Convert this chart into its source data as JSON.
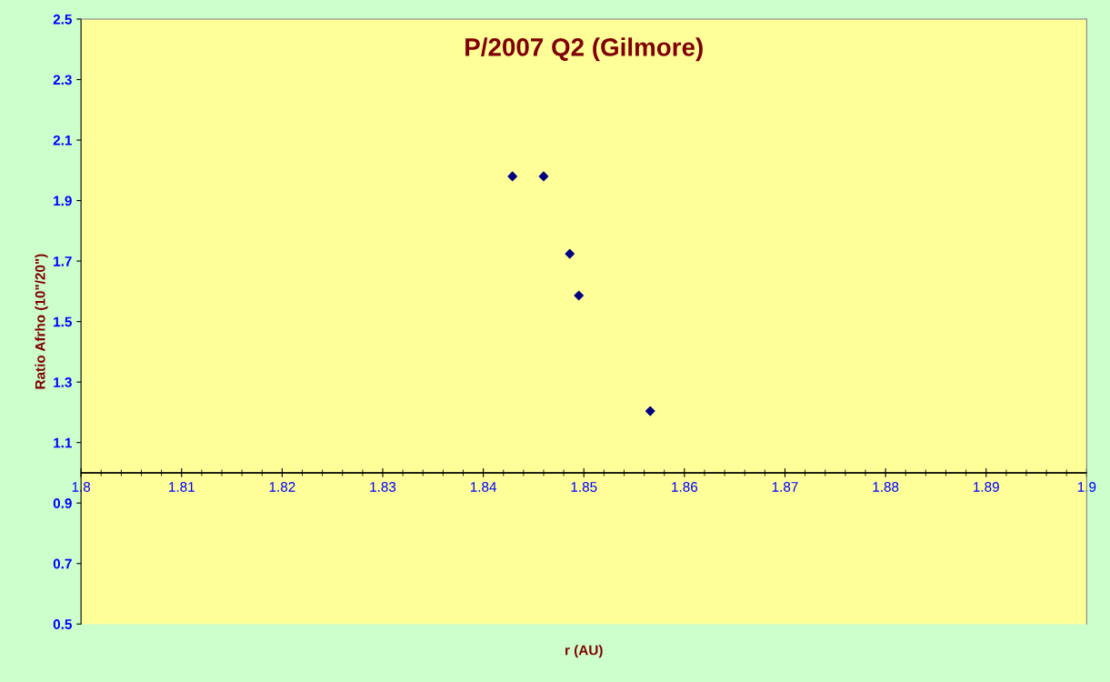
{
  "chart_data": {
    "type": "scatter",
    "title": "P/2007 Q2 (Gilmore)",
    "xlabel": "r (AU)",
    "ylabel": "Ratio Afrho (10\"/20\")",
    "series": [
      {
        "color": "#000080",
        "x": [
          1.8429,
          1.846,
          1.8486,
          1.8495,
          1.8566
        ],
        "values": [
          1.98,
          1.98,
          1.724,
          1.586,
          1.204
        ]
      }
    ],
    "marker": "diamond",
    "grid": false,
    "legend": false,
    "xlim": [
      1.8,
      1.9
    ],
    "xticks": [
      {
        "value": 1.8,
        "label": "1.8"
      },
      1.81,
      1.82,
      1.83,
      1.84,
      1.85,
      1.86,
      1.87,
      1.88,
      1.89,
      {
        "value": 1.9,
        "label": "1.9"
      }
    ],
    "ylim": [
      0.5,
      2.5
    ],
    "yticks": [
      0.5,
      0.7,
      0.9,
      1.1,
      1.3,
      1.5,
      1.7,
      1.9,
      2.1,
      2.3,
      2.5
    ],
    "ref_lines": [
      {
        "axis": "y",
        "value": 1.0,
        "color": "#000000"
      }
    ]
  }
}
